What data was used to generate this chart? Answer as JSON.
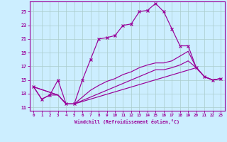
{
  "xlabel": "Windchill (Refroidissement éolien,°C)",
  "bg_color": "#cceeff",
  "line_color": "#990099",
  "grid_color": "#aacccc",
  "xlim": [
    -0.5,
    23.5
  ],
  "ylim": [
    10.5,
    26.5
  ],
  "yticks": [
    11,
    13,
    15,
    17,
    19,
    21,
    23,
    25
  ],
  "xticks": [
    0,
    1,
    2,
    3,
    4,
    5,
    6,
    7,
    8,
    9,
    10,
    11,
    12,
    13,
    14,
    15,
    16,
    17,
    18,
    19,
    20,
    21,
    22,
    23
  ],
  "line_main_x": [
    0,
    1,
    2,
    3,
    4,
    5,
    6,
    7,
    8,
    9,
    10,
    11,
    12,
    13,
    14,
    15,
    16,
    17,
    18,
    19,
    20,
    21,
    22,
    23
  ],
  "line_main_y": [
    14.0,
    12.2,
    12.8,
    15.0,
    11.5,
    11.5,
    15.0,
    18.0,
    21.0,
    21.2,
    21.5,
    23.0,
    23.2,
    25.0,
    25.2,
    26.2,
    25.0,
    22.5,
    20.0,
    20.0,
    16.8,
    15.5,
    15.0,
    15.2
  ],
  "line_top_x": [
    0,
    1,
    2,
    3,
    4,
    5,
    20,
    21,
    22,
    23
  ],
  "line_top_y": [
    14.0,
    12.2,
    12.8,
    12.8,
    11.5,
    11.5,
    16.8,
    15.5,
    15.0,
    15.2
  ],
  "line_mid_x": [
    0,
    3,
    4,
    5,
    6,
    7,
    8,
    9,
    10,
    11,
    12,
    13,
    14,
    15,
    16,
    17,
    18,
    19,
    20,
    21,
    22,
    23
  ],
  "line_mid_y": [
    14.0,
    12.8,
    11.5,
    11.5,
    12.5,
    13.5,
    14.2,
    14.8,
    15.2,
    15.8,
    16.2,
    16.8,
    17.2,
    17.5,
    17.5,
    17.8,
    18.5,
    19.2,
    16.8,
    15.5,
    15.0,
    15.2
  ],
  "line_low_x": [
    0,
    3,
    4,
    5,
    6,
    7,
    8,
    9,
    10,
    11,
    12,
    13,
    14,
    15,
    16,
    17,
    18,
    19,
    20,
    21,
    22,
    23
  ],
  "line_low_y": [
    14.0,
    12.8,
    11.5,
    11.5,
    12.0,
    12.5,
    13.0,
    13.5,
    14.0,
    14.5,
    15.0,
    15.5,
    16.0,
    16.5,
    16.5,
    16.8,
    17.2,
    17.8,
    16.8,
    15.5,
    15.0,
    15.2
  ]
}
